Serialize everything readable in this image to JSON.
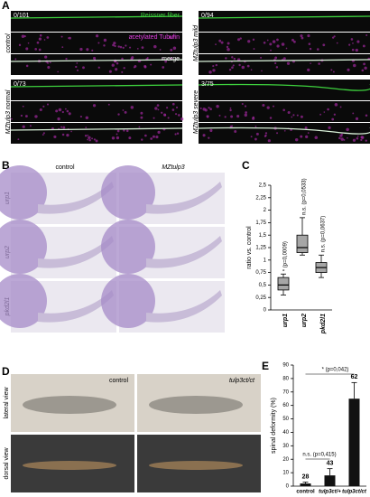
{
  "panel_a": {
    "label": "A",
    "channels": [
      "Reissner fiber",
      "acetylated Tubulin",
      "merge"
    ],
    "groups": [
      {
        "name": "control",
        "count": "0/101"
      },
      {
        "name": "MZtulp3 normal",
        "count": "0/73"
      },
      {
        "name": "MZtulp3 mild",
        "count": "0/94"
      },
      {
        "name": "MZtulp3 severe",
        "count": "3/75"
      }
    ]
  },
  "panel_b": {
    "label": "B",
    "columns": [
      "control",
      "MZtulp3"
    ],
    "rows": [
      "urp1",
      "urp2",
      "pkd2l1"
    ]
  },
  "panel_d": {
    "label": "D",
    "columns": [
      "control",
      "tulp3ct/ct"
    ],
    "rows": [
      "lateral view",
      "dorsal view"
    ]
  },
  "chart_data": [
    {
      "type": "box",
      "label": "C",
      "y_label": "ratio vs. control",
      "categories": [
        "urp1",
        "urp2",
        "pkd2l1"
      ],
      "whisker_low": [
        0.3,
        1.1,
        0.65
      ],
      "q1": [
        0.4,
        1.15,
        0.75
      ],
      "median": [
        0.5,
        1.25,
        0.85
      ],
      "q3": [
        0.65,
        1.5,
        0.95
      ],
      "whisker_high": [
        0.72,
        1.85,
        1.1
      ],
      "annotations": [
        "* (p=0,0009)",
        "n.s. (p=0,0533)",
        "n.s. (p=0,0637)"
      ],
      "color": "#a6a6a6",
      "ylim": [
        0,
        2.5
      ],
      "yticks": [
        0,
        {
          "value": 0.25,
          "label": "0,25"
        },
        {
          "value": 0.5,
          "label": "0,5"
        },
        {
          "value": 0.75,
          "label": "0,75"
        },
        1,
        {
          "value": 1.25,
          "label": "1,25"
        },
        {
          "value": 1.5,
          "label": "1,5"
        },
        {
          "value": 1.75,
          "label": "1,75"
        },
        2,
        {
          "value": 2.25,
          "label": "2,25"
        },
        {
          "value": 2.5,
          "label": "2,5"
        }
      ]
    },
    {
      "type": "bar",
      "label": "E",
      "y_label": "spinal deformity (%)",
      "categories": [
        "control",
        "tulp3ct/+",
        "tulp3ct/ct"
      ],
      "values": [
        2,
        8,
        65
      ],
      "errors": [
        1,
        5,
        12
      ],
      "n_labels": [
        "28",
        "43",
        "62"
      ],
      "annotations": [
        "n.s. (p=0,415)",
        "* (p=0,042)"
      ],
      "color": "#111111",
      "ylim": [
        0,
        90
      ],
      "yticks": [
        0,
        10,
        20,
        30,
        40,
        50,
        60,
        70,
        80,
        90
      ]
    }
  ]
}
